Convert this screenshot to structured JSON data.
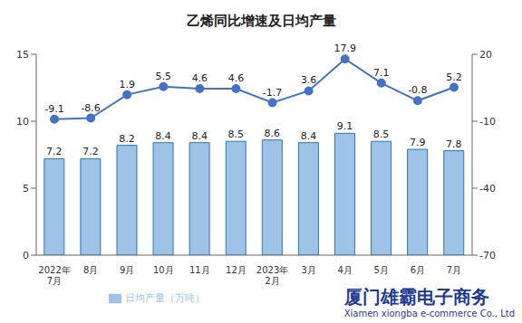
{
  "chart_data": {
    "type": "bar",
    "title": "乙烯同比增速及日均产量",
    "categories": [
      "2022年7月",
      "8月",
      "9月",
      "10月",
      "11月",
      "12月",
      "2023年2月",
      "3月",
      "4月",
      "5月",
      "6月",
      "7月"
    ],
    "series": [
      {
        "name": "日均产量（万吨）",
        "type": "bar",
        "color": "#9dc3e6",
        "values": [
          7.2,
          7.2,
          8.2,
          8.4,
          8.4,
          8.5,
          8.6,
          8.4,
          9.1,
          8.5,
          7.9,
          7.8
        ]
      },
      {
        "type": "line",
        "axis": "y2",
        "color": "#4472c4",
        "marker": "circle",
        "values": [
          -9.1,
          -8.6,
          1.9,
          5.5,
          4.6,
          4.6,
          -1.7,
          3.6,
          17.9,
          7.1,
          -0.8,
          5.2
        ]
      }
    ],
    "ylim": [
      0,
      15
    ],
    "yticks": [
      0,
      5,
      10,
      15
    ],
    "y2lim": [
      -70,
      20
    ],
    "y2ticks": [
      -70,
      -40,
      -10,
      20
    ],
    "grid": false,
    "data_labels": true,
    "legend": "bottom",
    "annotations": [
      "厦门雄霸电子商务",
      "Xiamen xiongba e-commerce Co., Ltd"
    ]
  }
}
